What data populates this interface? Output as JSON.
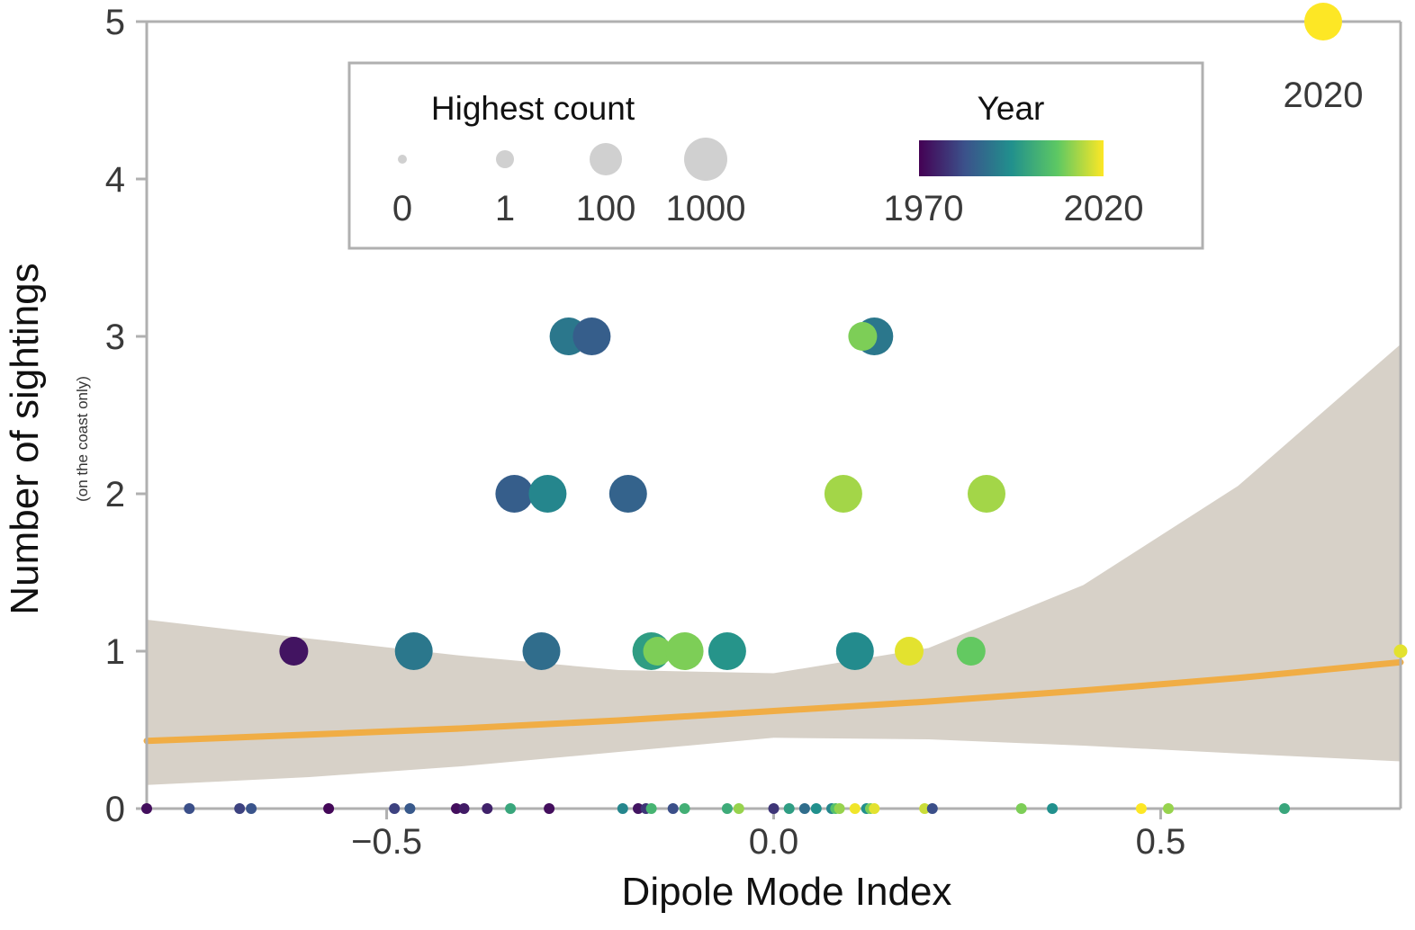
{
  "chart_data": {
    "type": "scatter",
    "title": "",
    "xlabel": "Dipole Mode Index",
    "ylabel": "Number of sightings",
    "ylabel_sub": "(on the coast only)",
    "xlim": [
      -0.81,
      0.81
    ],
    "ylim": [
      0,
      5
    ],
    "x_ticks": [
      -0.5,
      0.0,
      0.5
    ],
    "x_tick_labels": [
      "−0.5",
      "0.0",
      "0.5"
    ],
    "y_ticks": [
      0,
      1,
      2,
      3,
      4,
      5
    ],
    "y_tick_labels": [
      "0",
      "1",
      "2",
      "3",
      "4",
      "5"
    ],
    "grid": false,
    "colorscale": {
      "title": "Year",
      "min": 1970,
      "max": 2020,
      "min_label": "1970",
      "max_label": "2020",
      "colors": [
        "#440154",
        "#3b528b",
        "#21908d",
        "#5dc863",
        "#fde725"
      ]
    },
    "size_legend": {
      "title": "Highest count",
      "entries": [
        {
          "label": "0",
          "count": 0
        },
        {
          "label": "1",
          "count": 1
        },
        {
          "label": "100",
          "count": 100
        },
        {
          "label": "1000",
          "count": 1000
        }
      ]
    },
    "annotations": [
      {
        "x": 0.71,
        "y": 5,
        "text": "2020"
      }
    ],
    "points": [
      {
        "x": 0.71,
        "y": 5,
        "year": 2020,
        "count": 1000
      },
      {
        "x": -0.265,
        "y": 3,
        "year": 1990,
        "count": 1000
      },
      {
        "x": -0.235,
        "y": 3,
        "year": 1985,
        "count": 1000
      },
      {
        "x": 0.13,
        "y": 3,
        "year": 1990,
        "count": 1000
      },
      {
        "x": 0.115,
        "y": 3,
        "year": 2010,
        "count": 100
      },
      {
        "x": -0.335,
        "y": 2,
        "year": 1985,
        "count": 1000
      },
      {
        "x": -0.292,
        "y": 2,
        "year": 1993,
        "count": 1000
      },
      {
        "x": -0.188,
        "y": 2,
        "year": 1986,
        "count": 1000
      },
      {
        "x": 0.09,
        "y": 2,
        "year": 2013,
        "count": 1000
      },
      {
        "x": 0.275,
        "y": 2,
        "year": 2013,
        "count": 1000
      },
      {
        "x": -0.62,
        "y": 1,
        "year": 1973,
        "count": 100
      },
      {
        "x": -0.465,
        "y": 1,
        "year": 1990,
        "count": 1000
      },
      {
        "x": -0.3,
        "y": 1,
        "year": 1988,
        "count": 1000
      },
      {
        "x": -0.158,
        "y": 1,
        "year": 1998,
        "count": 1000
      },
      {
        "x": -0.15,
        "y": 1,
        "year": 2010,
        "count": 100
      },
      {
        "x": -0.115,
        "y": 1,
        "year": 2010,
        "count": 1000
      },
      {
        "x": -0.06,
        "y": 1,
        "year": 1996,
        "count": 1000
      },
      {
        "x": 0.105,
        "y": 1,
        "year": 1994,
        "count": 1000
      },
      {
        "x": 0.175,
        "y": 1,
        "year": 2018,
        "count": 100
      },
      {
        "x": 0.255,
        "y": 1,
        "year": 2008,
        "count": 100
      },
      {
        "x": 0.81,
        "y": 1,
        "year": 2018,
        "count": 1
      },
      {
        "x": -0.81,
        "y": 0,
        "year": 1972,
        "count": 0
      },
      {
        "x": -0.755,
        "y": 0,
        "year": 1982,
        "count": 0
      },
      {
        "x": -0.69,
        "y": 0,
        "year": 1980,
        "count": 0
      },
      {
        "x": -0.675,
        "y": 0,
        "year": 1983,
        "count": 0
      },
      {
        "x": -0.575,
        "y": 0,
        "year": 1971,
        "count": 0
      },
      {
        "x": -0.49,
        "y": 0,
        "year": 1980,
        "count": 0
      },
      {
        "x": -0.47,
        "y": 0,
        "year": 1984,
        "count": 0
      },
      {
        "x": -0.41,
        "y": 0,
        "year": 1972,
        "count": 0
      },
      {
        "x": -0.4,
        "y": 0,
        "year": 1974,
        "count": 0
      },
      {
        "x": -0.37,
        "y": 0,
        "year": 1975,
        "count": 0
      },
      {
        "x": -0.34,
        "y": 0,
        "year": 2000,
        "count": 0
      },
      {
        "x": -0.29,
        "y": 0,
        "year": 1972,
        "count": 0
      },
      {
        "x": -0.195,
        "y": 0,
        "year": 1993,
        "count": 0
      },
      {
        "x": -0.175,
        "y": 0,
        "year": 1973,
        "count": 0
      },
      {
        "x": -0.165,
        "y": 0,
        "year": 1978,
        "count": 0
      },
      {
        "x": -0.158,
        "y": 0,
        "year": 2003,
        "count": 0
      },
      {
        "x": -0.13,
        "y": 0,
        "year": 1982,
        "count": 0
      },
      {
        "x": -0.115,
        "y": 0,
        "year": 2002,
        "count": 0
      },
      {
        "x": -0.06,
        "y": 0,
        "year": 2001,
        "count": 0
      },
      {
        "x": -0.045,
        "y": 0,
        "year": 2012,
        "count": 0
      },
      {
        "x": 0.0,
        "y": 0,
        "year": 1978,
        "count": 0
      },
      {
        "x": 0.02,
        "y": 0,
        "year": 1998,
        "count": 0
      },
      {
        "x": 0.04,
        "y": 0,
        "year": 1988,
        "count": 0
      },
      {
        "x": 0.055,
        "y": 0,
        "year": 1995,
        "count": 0
      },
      {
        "x": 0.075,
        "y": 0,
        "year": 1993,
        "count": 0
      },
      {
        "x": 0.08,
        "y": 0,
        "year": 2006,
        "count": 0
      },
      {
        "x": 0.085,
        "y": 0,
        "year": 2012,
        "count": 0
      },
      {
        "x": 0.105,
        "y": 0,
        "year": 2019,
        "count": 0
      },
      {
        "x": 0.12,
        "y": 0,
        "year": 1995,
        "count": 0
      },
      {
        "x": 0.125,
        "y": 0,
        "year": 2010,
        "count": 0
      },
      {
        "x": 0.13,
        "y": 0,
        "year": 2018,
        "count": 0
      },
      {
        "x": 0.195,
        "y": 0,
        "year": 2016,
        "count": 0
      },
      {
        "x": 0.205,
        "y": 0,
        "year": 1982,
        "count": 0
      },
      {
        "x": 0.32,
        "y": 0,
        "year": 2010,
        "count": 0
      },
      {
        "x": 0.36,
        "y": 0,
        "year": 1995,
        "count": 0
      },
      {
        "x": 0.475,
        "y": 0,
        "year": 2020,
        "count": 0
      },
      {
        "x": 0.51,
        "y": 0,
        "year": 2012,
        "count": 0
      },
      {
        "x": 0.66,
        "y": 0,
        "year": 2000,
        "count": 0
      }
    ],
    "trend": {
      "x": [
        -0.81,
        -0.6,
        -0.4,
        -0.2,
        0.0,
        0.2,
        0.4,
        0.6,
        0.81
      ],
      "fit": [
        0.43,
        0.47,
        0.51,
        0.56,
        0.62,
        0.68,
        0.75,
        0.83,
        0.93
      ],
      "lower": [
        0.15,
        0.2,
        0.27,
        0.36,
        0.45,
        0.44,
        0.4,
        0.35,
        0.3
      ],
      "upper": [
        1.2,
        1.08,
        0.97,
        0.88,
        0.86,
        1.02,
        1.42,
        2.05,
        2.95
      ],
      "line_color": "#f0ad45",
      "band_color": "#d7d1c8"
    }
  }
}
